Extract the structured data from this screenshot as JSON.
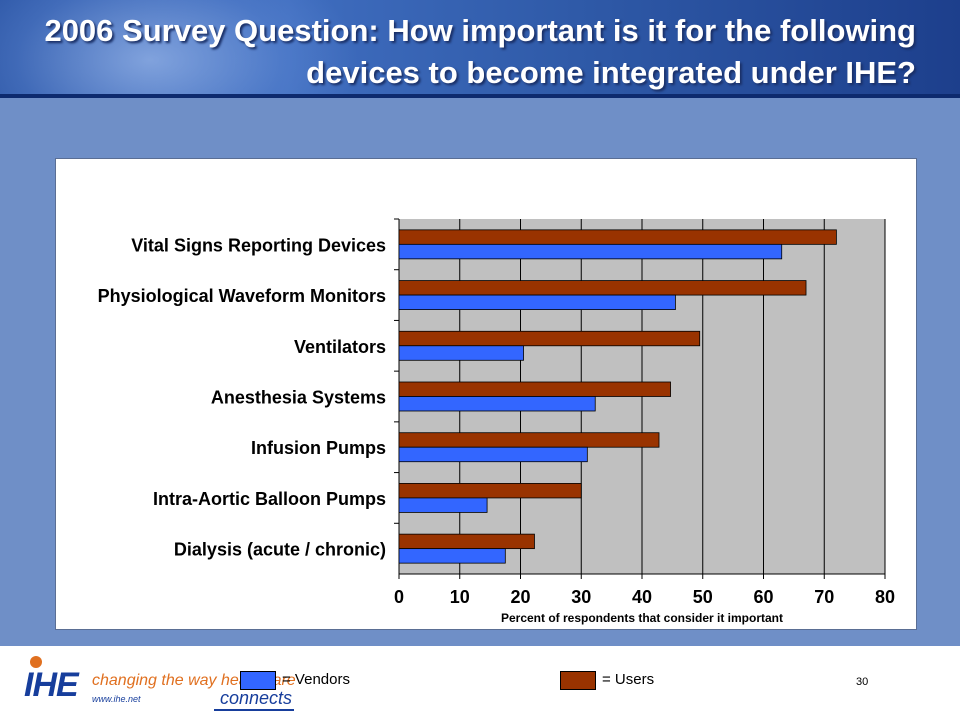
{
  "title": "2006 Survey Question: How important is it for the following devices to become integrated under IHE?",
  "chart_data": {
    "type": "bar",
    "orientation": "horizontal",
    "categories": [
      "Vital Signs Reporting Devices",
      "Physiological Waveform Monitors",
      "Ventilators",
      "Anesthesia Systems",
      "Infusion Pumps",
      "Intra-Aortic Balloon Pumps",
      "Dialysis (acute / chronic)"
    ],
    "series": [
      {
        "name": "Users",
        "color": "#993300",
        "values": [
          72,
          67,
          49.5,
          44.7,
          42.8,
          30,
          22.3
        ]
      },
      {
        "name": "Vendors",
        "color": "#3366ff",
        "values": [
          63,
          45.5,
          20.5,
          32.3,
          31,
          14.5,
          17.5
        ]
      }
    ],
    "xlabel": "Percent of respondents that consider it important",
    "ylabel": "",
    "xlim": [
      0,
      80
    ],
    "xticks": [
      "0",
      "10",
      "20",
      "30",
      "40",
      "50",
      "60",
      "70",
      "80"
    ],
    "grid": "vertical",
    "plot_background": "#c0c0c0",
    "legend_position": "below-chart"
  },
  "legend": {
    "vendors_label": "= Vendors",
    "users_label": "= Users",
    "vendors_color": "#3366ff",
    "users_color": "#993300"
  },
  "footer": {
    "logo_text": "IHE",
    "tagline": "changing the way healthcare",
    "url": "www.ihe.net",
    "connects": "connects",
    "page_number": "30"
  }
}
